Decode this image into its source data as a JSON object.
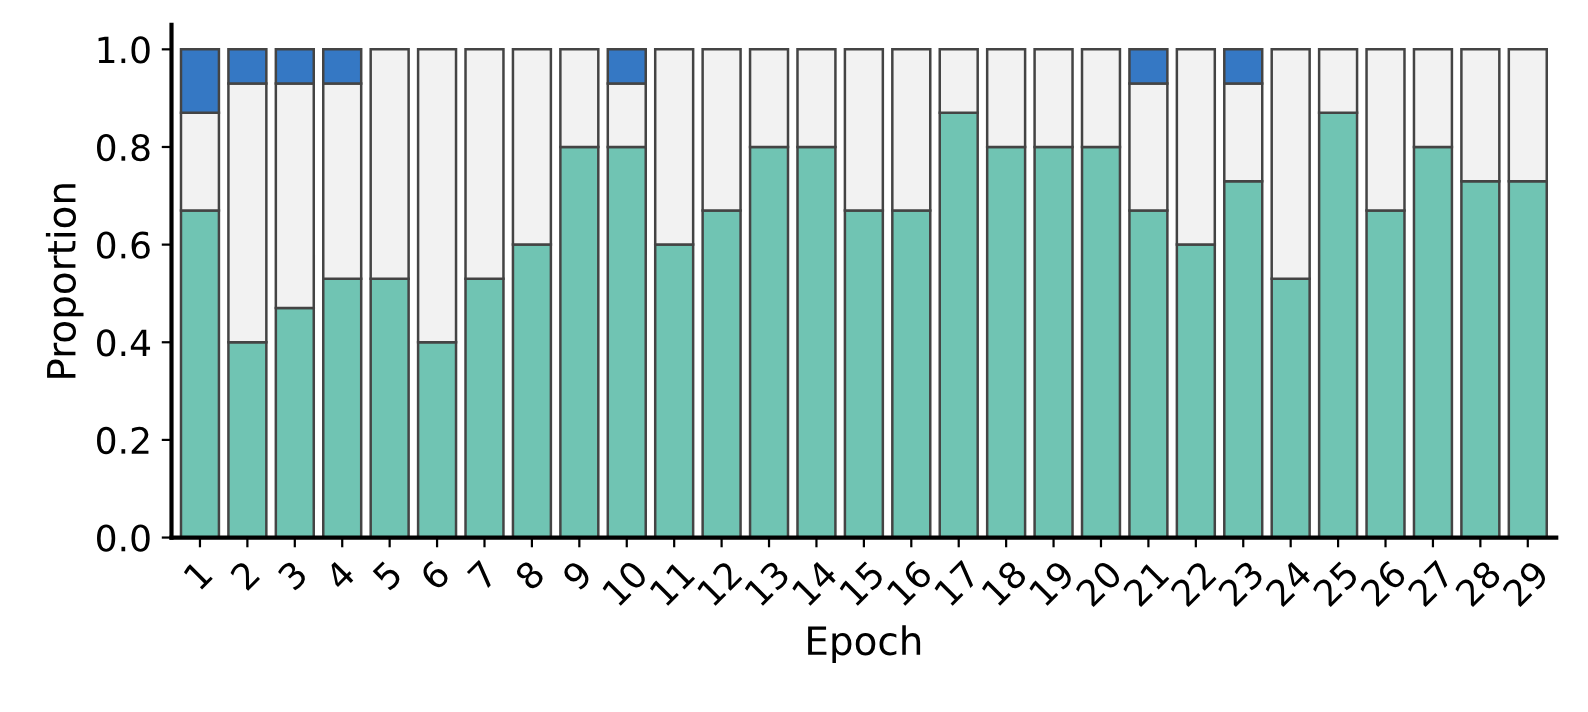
{
  "chart_data": {
    "type": "bar",
    "stacked": true,
    "xlabel": "Epoch",
    "ylabel": "Proportion",
    "categories": [
      "1",
      "2",
      "3",
      "4",
      "5",
      "6",
      "7",
      "8",
      "9",
      "10",
      "11",
      "12",
      "13",
      "14",
      "15",
      "16",
      "17",
      "18",
      "19",
      "20",
      "21",
      "22",
      "23",
      "24",
      "25",
      "26",
      "27",
      "28",
      "29"
    ],
    "series": [
      {
        "color": "#70c4b3",
        "values": [
          0.67,
          0.4,
          0.47,
          0.53,
          0.53,
          0.4,
          0.53,
          0.6,
          0.8,
          0.8,
          0.6,
          0.67,
          0.8,
          0.8,
          0.67,
          0.67,
          0.87,
          0.8,
          0.8,
          0.8,
          0.67,
          0.6,
          0.73,
          0.53,
          0.87,
          0.67,
          0.8,
          0.73,
          0.73
        ]
      },
      {
        "color": "#f2f2f2",
        "values": [
          0.2,
          0.53,
          0.46,
          0.4,
          0.47,
          0.6,
          0.47,
          0.4,
          0.2,
          0.13,
          0.4,
          0.33,
          0.2,
          0.2,
          0.33,
          0.33,
          0.13,
          0.2,
          0.2,
          0.2,
          0.26,
          0.4,
          0.2,
          0.47,
          0.13,
          0.33,
          0.2,
          0.27,
          0.27
        ]
      },
      {
        "color": "#3578c4",
        "values": [
          0.13,
          0.07,
          0.07,
          0.07,
          0,
          0,
          0,
          0,
          0,
          0.07,
          0,
          0,
          0,
          0,
          0,
          0,
          0,
          0,
          0,
          0,
          0.07,
          0,
          0.07,
          0,
          0,
          0,
          0,
          0,
          0
        ]
      }
    ],
    "ylim": [
      0,
      1.05
    ],
    "yticks": [
      {
        "value": 0,
        "label": "0.0"
      },
      {
        "value": 0.2,
        "label": "0.2"
      },
      {
        "value": 0.4,
        "label": "0.4"
      },
      {
        "value": 0.6,
        "label": "0.6"
      },
      {
        "value": 0.8,
        "label": "0.8"
      },
      {
        "value": 1,
        "label": "1.0"
      }
    ],
    "grid": false
  }
}
